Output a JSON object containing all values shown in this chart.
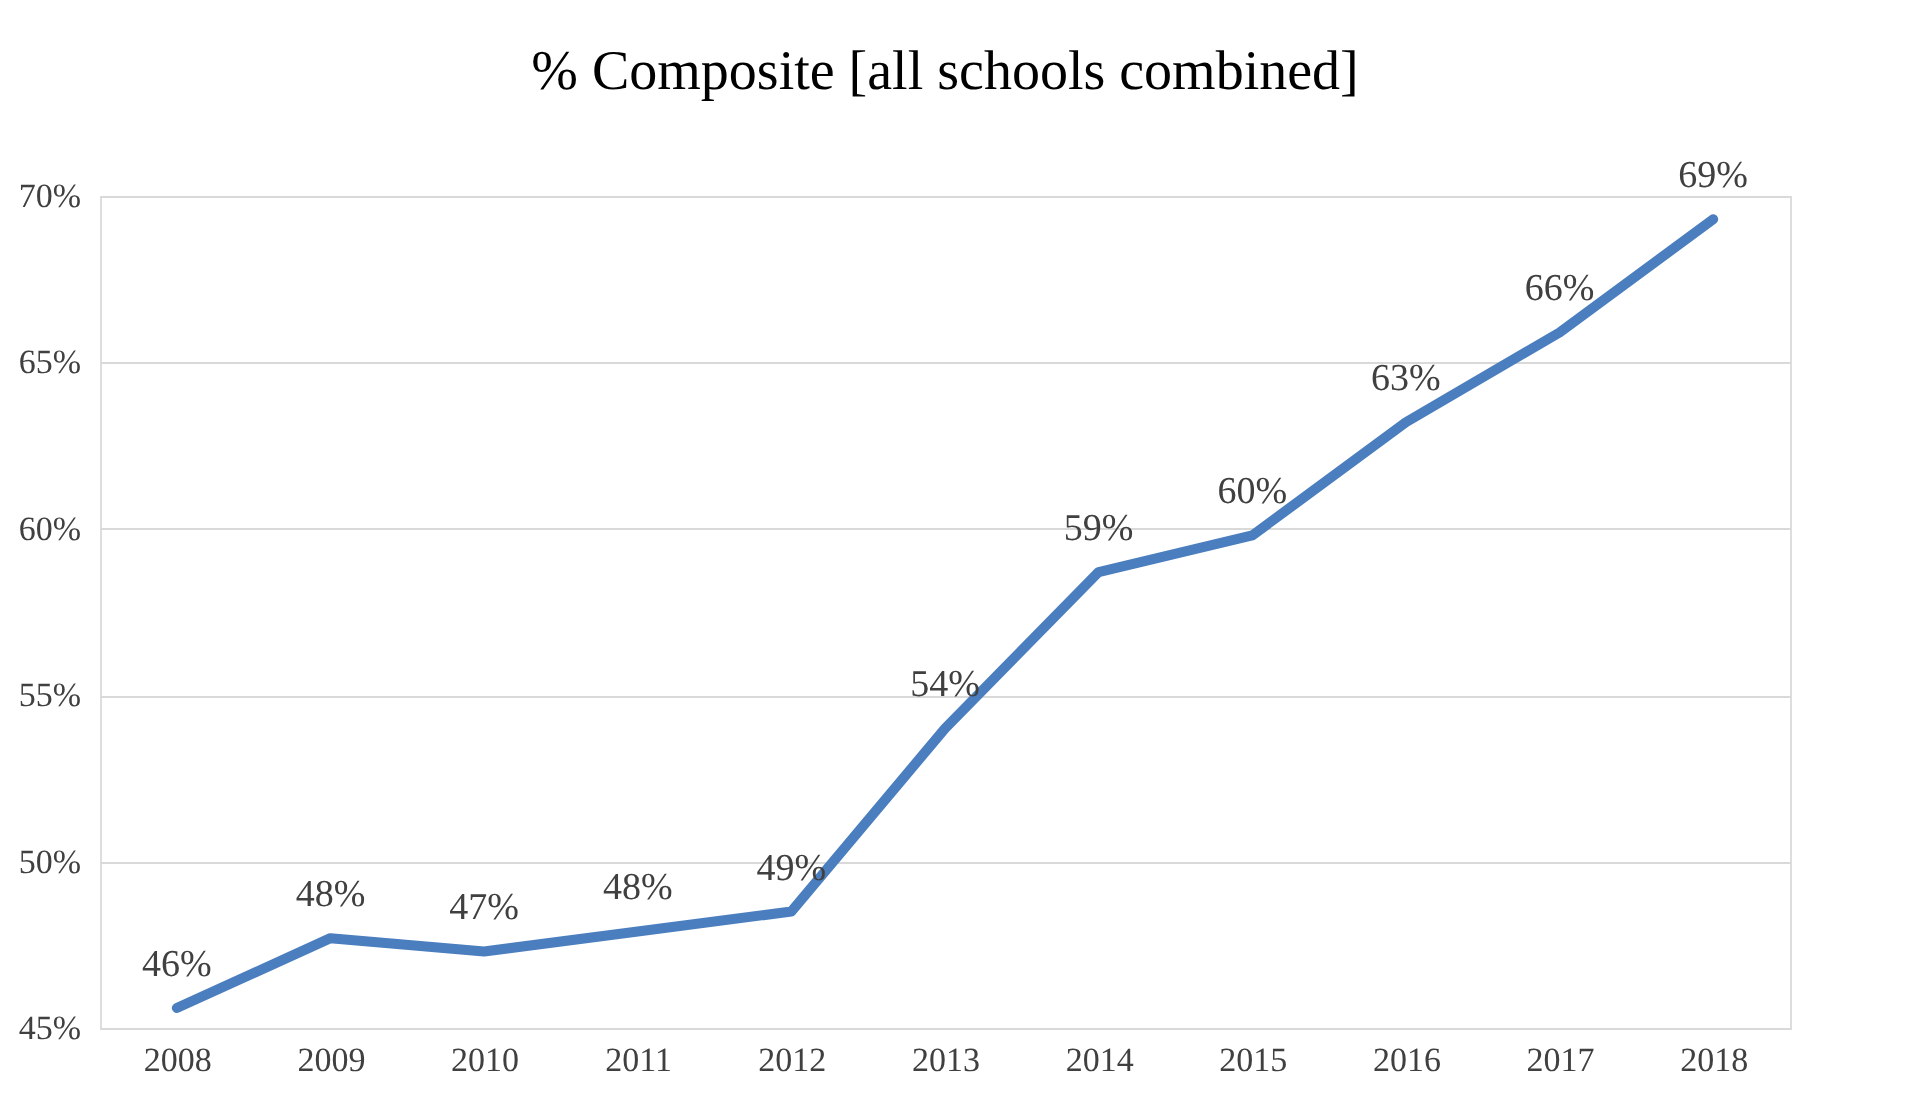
{
  "chart_data": {
    "type": "line",
    "title": "% Composite [all schools combined]",
    "categories": [
      "2008",
      "2009",
      "2010",
      "2011",
      "2012",
      "2013",
      "2014",
      "2015",
      "2016",
      "2017",
      "2018"
    ],
    "series": [
      {
        "color": "#4a7ebf",
        "values": [
          45.6,
          47.7,
          47.3,
          47.9,
          48.5,
          54.0,
          58.7,
          59.8,
          63.2,
          65.9,
          69.3
        ],
        "value_labels": [
          "46%",
          "48%",
          "47%",
          "48%",
          "49%",
          "54%",
          "59%",
          "60%",
          "63%",
          "66%",
          "69%"
        ]
      }
    ],
    "ylim": [
      45,
      70
    ],
    "yticks": [
      {
        "value": 45,
        "label": "45%"
      },
      {
        "value": 50,
        "label": "50%"
      },
      {
        "value": 55,
        "label": "55%"
      },
      {
        "value": 60,
        "label": "60%"
      },
      {
        "value": 65,
        "label": "65%"
      },
      {
        "value": 70,
        "label": "70%"
      }
    ],
    "grid": "y",
    "marker": "none",
    "line_style": "solid"
  }
}
